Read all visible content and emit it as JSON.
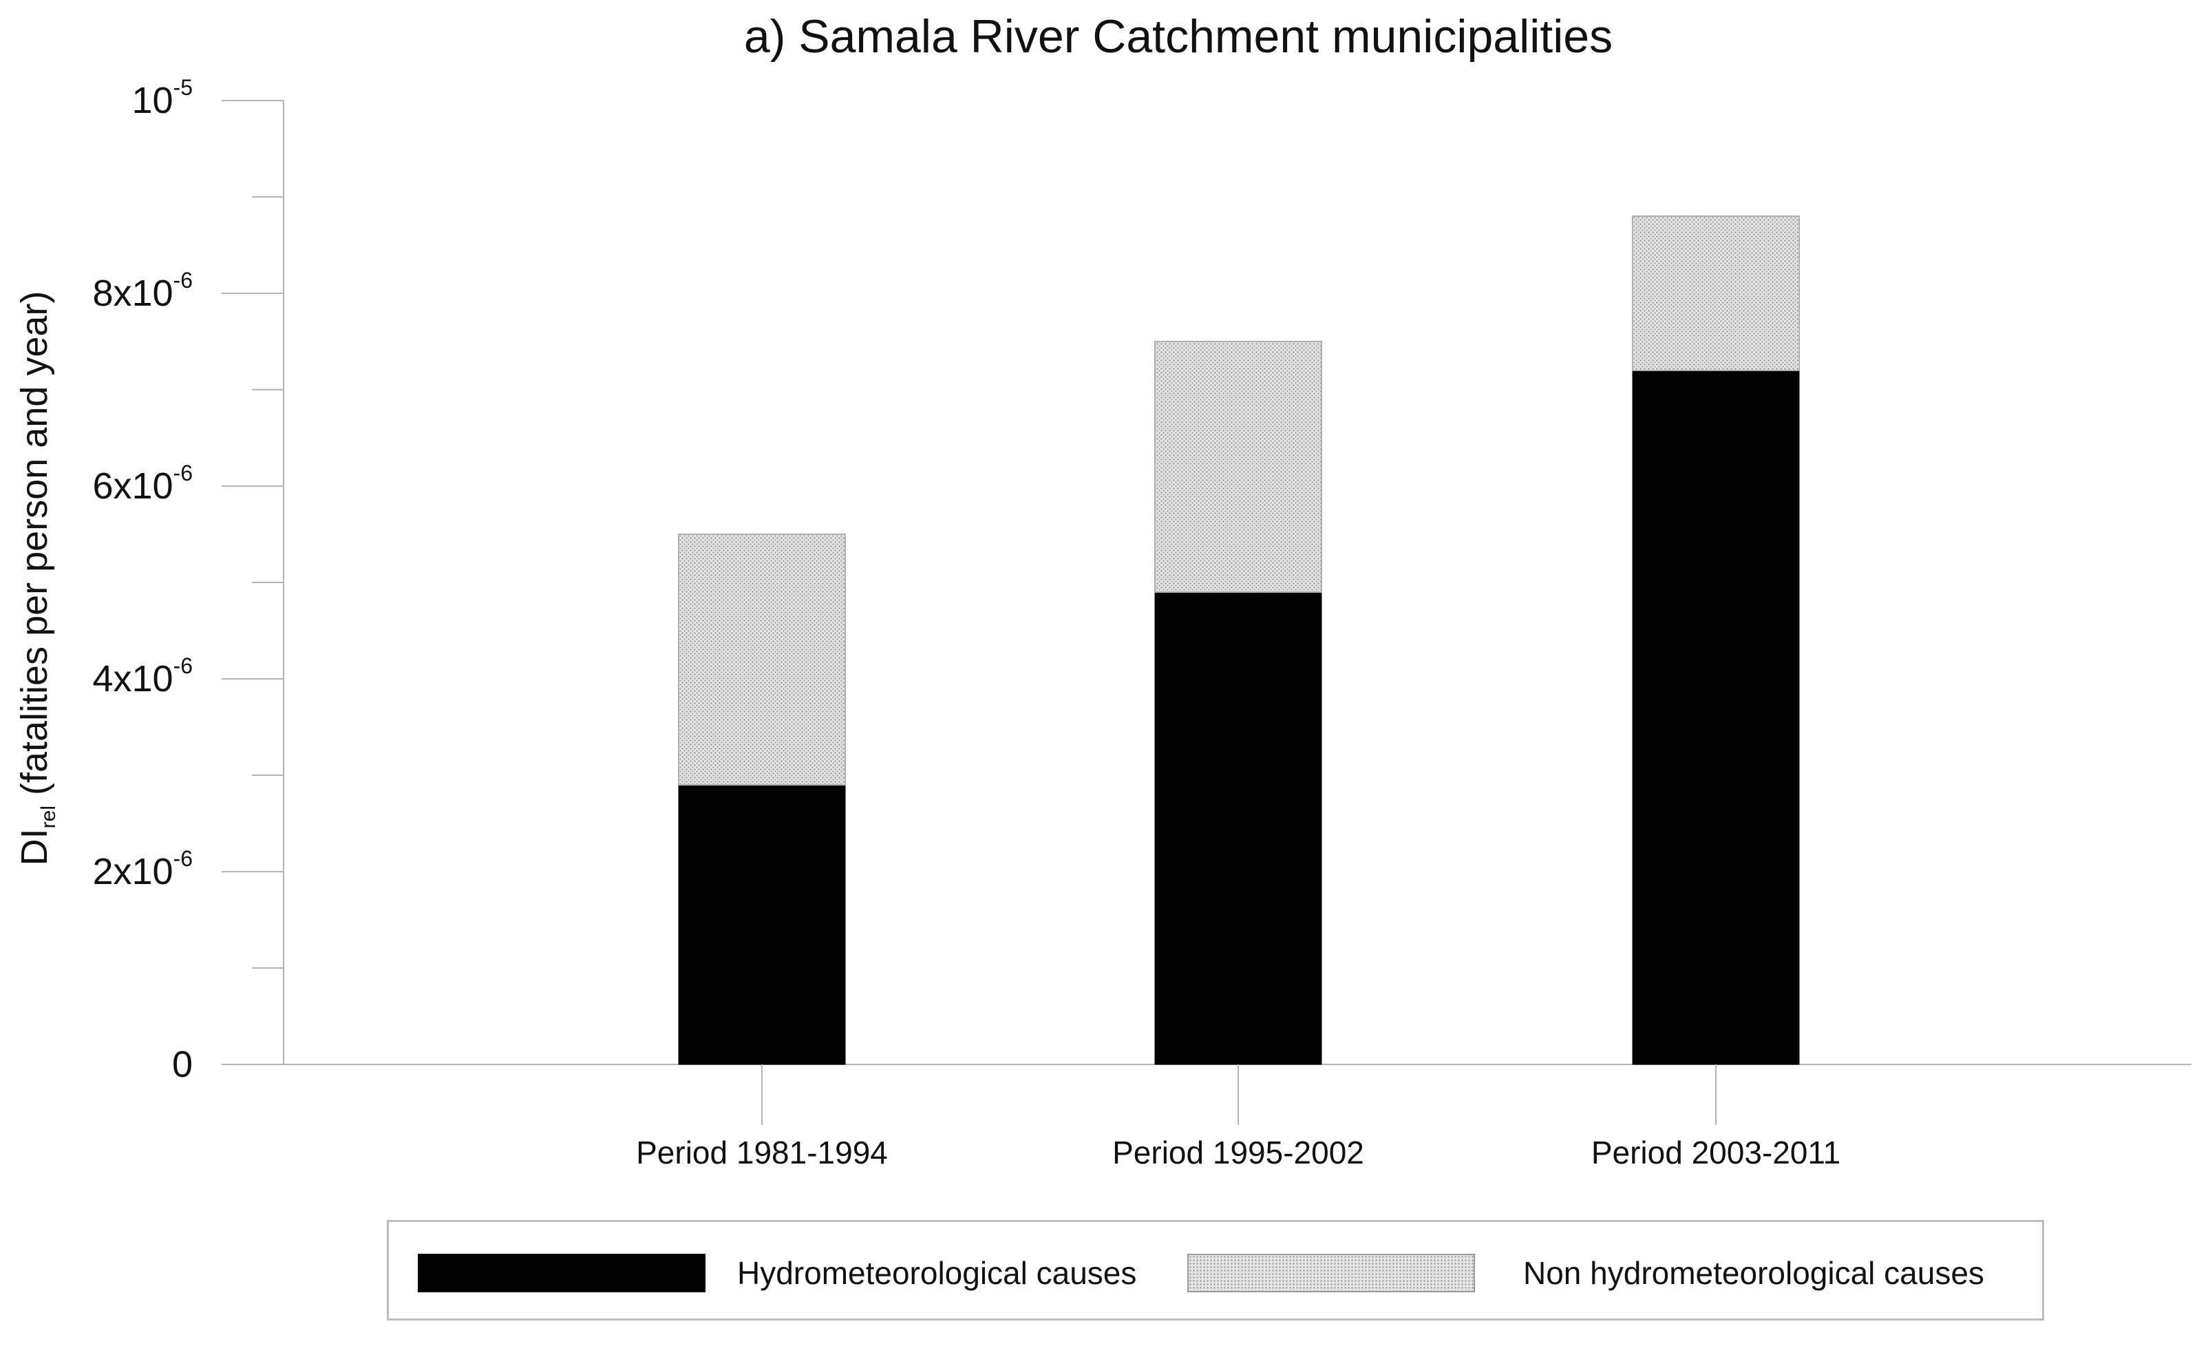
{
  "chart_data": {
    "type": "bar",
    "stacked": true,
    "title": "a) Samala River Catchment municipalities",
    "ylabel": {
      "main": "DI",
      "subscript": "rel",
      "rest": " (fatalities per person and year)"
    },
    "categories": [
      "Period 1981-1994",
      "Period 1995-2002",
      "Period 2003-2011"
    ],
    "ylim": [
      0,
      1e-05
    ],
    "yticks": [
      {
        "value": 0,
        "base": "0",
        "exp": ""
      },
      {
        "value": 2e-06,
        "base": "2x10",
        "exp": "-6"
      },
      {
        "value": 4e-06,
        "base": "4x10",
        "exp": "-6"
      },
      {
        "value": 6e-06,
        "base": "6x10",
        "exp": "-6"
      },
      {
        "value": 8e-06,
        "base": "8x10",
        "exp": "-6"
      },
      {
        "value": 1e-05,
        "base": "10",
        "exp": "-5"
      }
    ],
    "minor_yticks": [
      1e-06,
      3e-06,
      5e-06,
      7e-06,
      9e-06
    ],
    "series": [
      {
        "name": "Hydrometeorological causes",
        "values": [
          2.9e-06,
          4.9e-06,
          7.2e-06
        ],
        "color": "#000000",
        "pattern": "solid"
      },
      {
        "name": "Non hydrometeorological causes",
        "values": [
          2.6e-06,
          2.6e-06,
          1.6e-06
        ],
        "color": "#d0d0d0",
        "pattern": "dotted-gray"
      }
    ],
    "grid": false,
    "legend_position": "bottom"
  }
}
